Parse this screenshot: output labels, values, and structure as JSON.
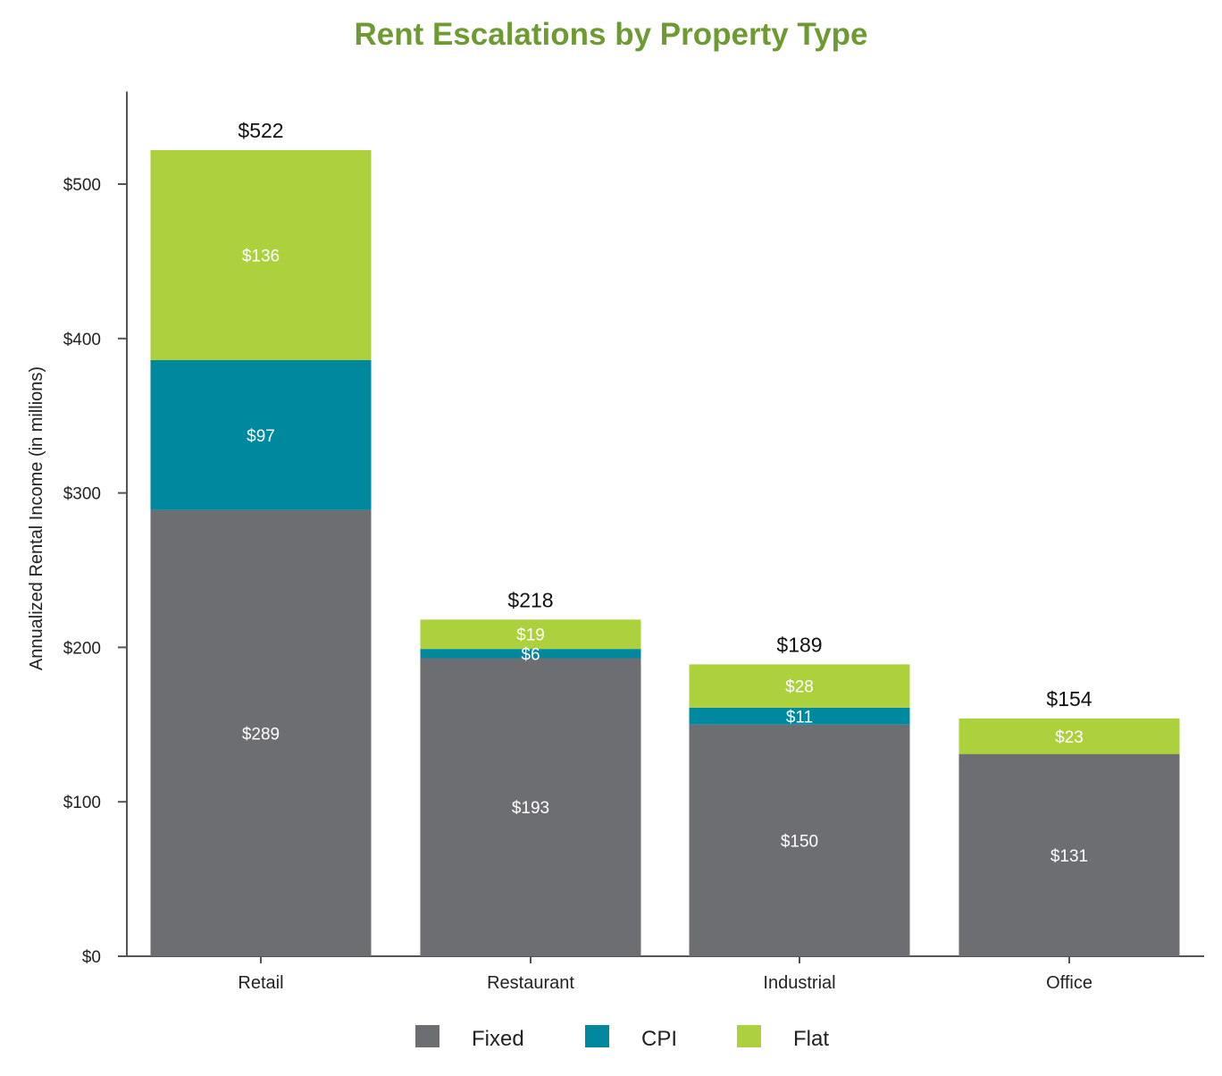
{
  "chart_data": {
    "type": "bar",
    "stacked": true,
    "title": "Rent Escalations by Property Type",
    "xlabel": "",
    "ylabel": "Annualized Rental Income (in millions)",
    "ylim": [
      0,
      560
    ],
    "yticks": [
      0,
      100,
      200,
      300,
      400,
      500
    ],
    "ytick_labels": [
      "$0",
      "$100",
      "$200",
      "$300",
      "$400",
      "$500"
    ],
    "categories": [
      "Retail",
      "Restaurant",
      "Industrial",
      "Office"
    ],
    "series": [
      {
        "name": "Fixed",
        "color": "#6d6e71",
        "values": [
          289,
          193,
          150,
          131
        ],
        "labels": [
          "$289",
          "$193",
          "$150",
          "$131"
        ]
      },
      {
        "name": "CPI",
        "color": "#00889e",
        "values": [
          97,
          6,
          11,
          0
        ],
        "labels": [
          "$97",
          "$6",
          "$11",
          ""
        ]
      },
      {
        "name": "Flat",
        "color": "#add13c",
        "values": [
          136,
          19,
          28,
          23
        ],
        "labels": [
          "$136",
          "$19",
          "$28",
          "$23"
        ]
      }
    ],
    "totals": [
      522,
      218,
      189,
      154
    ],
    "total_labels": [
      "$522",
      "$218",
      "$189",
      "$154"
    ],
    "legend_position": "bottom-center",
    "title_color": "#6e9a34",
    "axis_color": "#555555"
  }
}
